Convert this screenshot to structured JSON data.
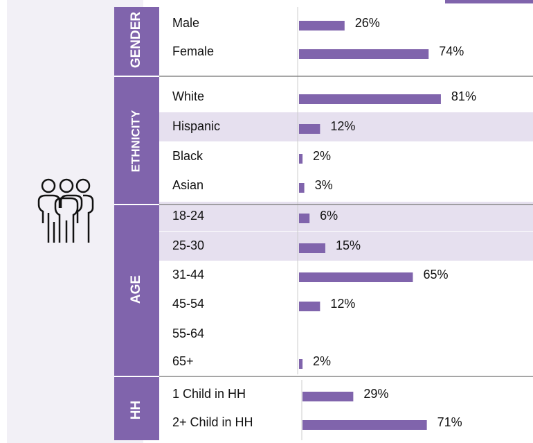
{
  "chart_data": {
    "type": "bar",
    "color": "#8064ac",
    "groups": [
      {
        "name": "GENDER",
        "categories": [
          "Male",
          "Female"
        ],
        "values": [
          26,
          74
        ],
        "value_labels": [
          "26%",
          "74%"
        ],
        "highlight": []
      },
      {
        "name": "ETHNICITY",
        "categories": [
          "White",
          "Hispanic",
          "Black",
          "Asian"
        ],
        "values": [
          81,
          12,
          2,
          3
        ],
        "value_labels": [
          "81%",
          "12%",
          "2%",
          "3%"
        ],
        "highlight": [
          1
        ]
      },
      {
        "name": "AGE",
        "categories": [
          "18-24",
          "25-30",
          "31-44",
          "45-54",
          "55-64",
          "65+"
        ],
        "values": [
          6,
          15,
          65,
          12,
          null,
          2
        ],
        "value_labels": [
          "6%",
          "15%",
          "65%",
          "12%",
          null,
          "2%"
        ],
        "highlight": [
          0,
          1
        ]
      },
      {
        "name": "HH",
        "categories": [
          "1 Child in HH",
          "2+ Child in HH"
        ],
        "values": [
          29,
          71
        ],
        "value_labels": [
          "29%",
          "71%"
        ],
        "highlight": []
      }
    ]
  }
}
